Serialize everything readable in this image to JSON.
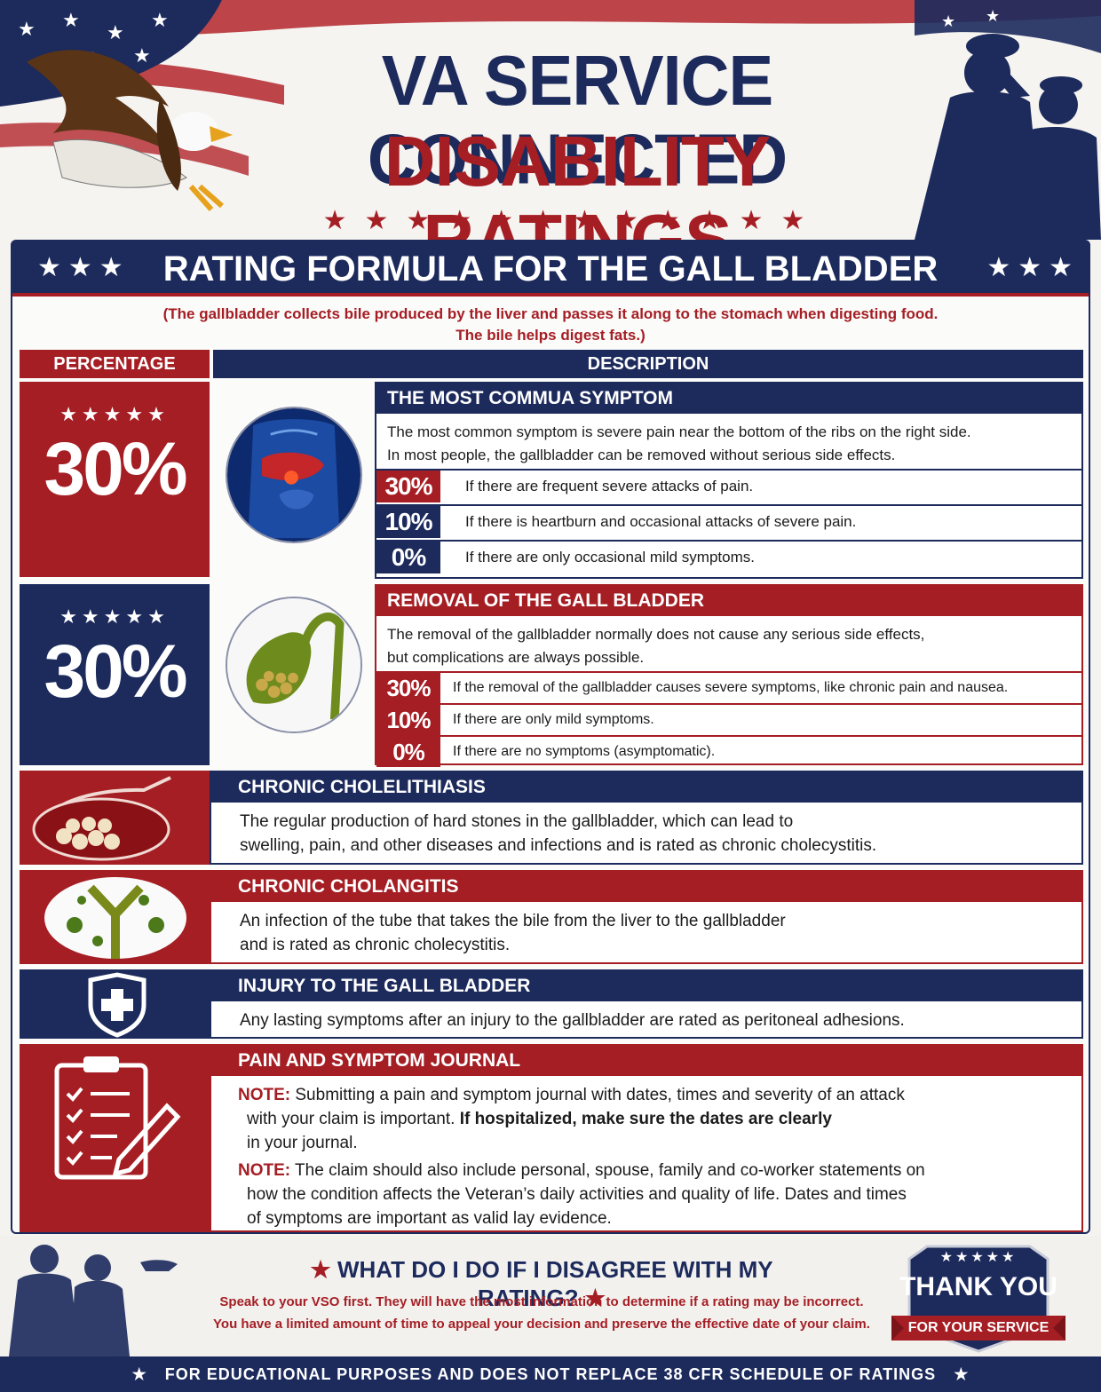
{
  "header": {
    "title_line1": "VA SERVICE CONNECTED",
    "title_line2": "DISABILITY RATINGS",
    "stars": "★★★★★★★★★★★★",
    "eagle_icon": "eagle-icon",
    "saluting_soldiers_icon": "saluting-soldiers-icon"
  },
  "banner": {
    "title": "RATING FORMULA FOR THE GALL BLADDER",
    "stars": "★★★"
  },
  "intro": {
    "line1": "(The gallbladder collects bile produced by the liver and passes it along to the stomach when digesting food.",
    "line2": "The bile helps digest fats.)"
  },
  "table": {
    "col_percentage": "PERCENTAGE",
    "col_description": "DESCRIPTION"
  },
  "section1": {
    "stars": "★★★★★",
    "percent": "30%",
    "title": "THE MOST COMMUA SYMPTOM",
    "text_line1": "The most common symptom is severe pain near the bottom of the ribs on the right side.",
    "text_line2": "In most people, the gallbladder can be removed without serious side effects.",
    "ratings": [
      {
        "pct": "30%",
        "text": "If there are frequent severe attacks of pain."
      },
      {
        "pct": "10%",
        "text": "If there is heartburn and occasional attacks of severe pain."
      },
      {
        "pct": "0%",
        "text": "If there are only occasional mild symptoms."
      }
    ]
  },
  "section2": {
    "stars": "★★★★★",
    "percent": "30%",
    "title": "REMOVAL OF THE GALL BLADDER",
    "text_line1": "The removal of the gallbladder normally does not cause any serious side effects,",
    "text_line2": "but complications are always possible.",
    "ratings": [
      {
        "pct": "30%",
        "text": "If the removal of the gallbladder causes severe symptoms, like chronic pain and nausea."
      },
      {
        "pct": "10%",
        "text": "If there are only mild symptoms."
      },
      {
        "pct": "0%",
        "text": "If there are no symptoms (asymptomatic)."
      }
    ]
  },
  "cholelithiasis": {
    "title": "CHRONIC CHOLELITHIASIS",
    "text_line1": "The regular production of hard stones in the gallbladder, which can lead to",
    "text_line2": "swelling, pain, and other diseases and infections and is rated as chronic cholecystitis."
  },
  "cholangitis": {
    "title": "CHRONIC CHOLANGITIS",
    "text_line1": "An infection of the tube that takes the bile from the liver to the gallbladder",
    "text_line2": "and is rated as chronic cholecystitis."
  },
  "injury": {
    "title": "INJURY TO THE GALL BLADDER",
    "text": "Any lasting symptoms after an injury to the gallbladder are rated as peritoneal adhesions."
  },
  "journal": {
    "title": "PAIN AND SYMPTOM JOURNAL",
    "note_label": "NOTE:",
    "note1_part1": " Submitting a pain and symptom journal with dates, times and severity of an attack",
    "note1_part2": "with your claim is important. ",
    "note1_bold": "If hospitalized, make sure the dates are clearly",
    "note1_part3": "in your journal.",
    "note2_part1": " The claim should also include personal, spouse, family and co-worker statements on",
    "note2_part2": "how the condition affects the Veteran’s daily activities and quality of life. Dates and times",
    "note2_part3": "of symptoms are important as valid lay evidence."
  },
  "footer": {
    "question": "WHAT DO I DO IF I DISAGREE WITH MY RATING?",
    "star": "★",
    "answer_line1": "Speak to your VSO first. They will have the most information to determine if a rating may be incorrect.",
    "answer_line2": "You have a limited amount of time to appeal your decision and preserve the effective date of your claim.",
    "badge_line1": "THANK YOU",
    "badge_line2": "FOR YOUR SERVICE",
    "badge_stars": "★★★★★",
    "disclaimer": "FOR EDUCATIONAL PURPOSES AND DOES NOT REPLACE 38 CFR SCHEDULE OF RATINGS"
  },
  "colors": {
    "navy": "#1c2a5c",
    "red": "#a51e24"
  }
}
